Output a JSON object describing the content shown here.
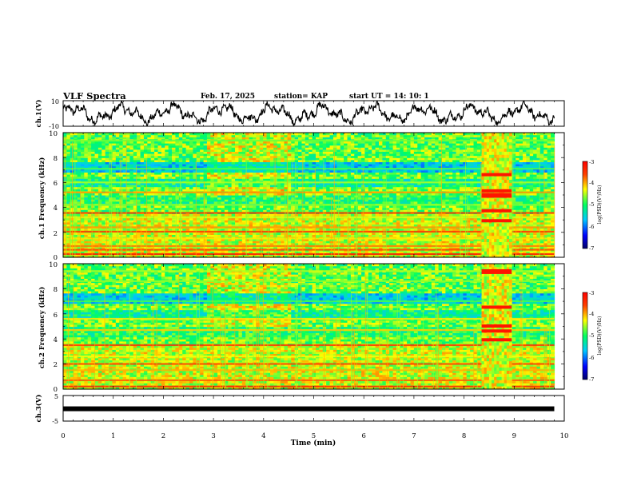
{
  "header": {
    "title": "VLF Spectra",
    "date": "Feb. 17, 2025",
    "station": "station= KAP",
    "start": "start  UT =   14: 10: 1"
  },
  "chart_data": [
    {
      "type": "line",
      "name": "ch1-waveform",
      "ylabel": "ch.1(V)",
      "ylim": [
        -10,
        10
      ],
      "yticks": [
        "10",
        "-10"
      ],
      "xlim": [
        0,
        10
      ],
      "description_values": "noisy voltage trace oscillating roughly between -8 and +8 V over 0–9.8 min"
    },
    {
      "type": "heatmap",
      "name": "ch1-spectrogram",
      "ylabel": "ch.1 Frequency (kHz)",
      "ylim": [
        0,
        10
      ],
      "yticks": [
        "0",
        "2",
        "4",
        "6",
        "8",
        "10"
      ],
      "xlim": [
        0,
        9.8
      ],
      "colorbar": {
        "label": "log(PSD)(V²/Hz)",
        "range": [
          -7,
          -3
        ],
        "ticks": [
          "-3",
          "-4",
          "-5",
          "-6",
          "-7"
        ]
      },
      "bands_khz": [
        {
          "freq": 0.25,
          "level": -3.2
        },
        {
          "freq": 0.6,
          "level": -3.6
        },
        {
          "freq": 0.9,
          "level": -3.8
        },
        {
          "freq": 1.5,
          "level": -4.2
        },
        {
          "freq": 2.05,
          "level": -3.5
        },
        {
          "freq": 2.4,
          "level": -3.9
        },
        {
          "freq": 3.2,
          "level": -4.4
        },
        {
          "freq": 3.55,
          "level": -3.4
        },
        {
          "freq": 4.2,
          "level": -4.6
        },
        {
          "freq": 5.2,
          "level": -3.9
        },
        {
          "freq": 6.0,
          "level": -4.5
        },
        {
          "freq": 7.1,
          "level": -4.8
        },
        {
          "freq": 9.35,
          "level": -4.7
        }
      ],
      "burst": {
        "t_start": 8.35,
        "t_end": 8.95,
        "freqs_khz": [
          5.0,
          5.3,
          6.6,
          3.7,
          2.9
        ]
      }
    },
    {
      "type": "heatmap",
      "name": "ch2-spectrogram",
      "ylabel": "ch.2 Frequency (kHz)",
      "ylim": [
        0,
        10
      ],
      "yticks": [
        "0",
        "2",
        "4",
        "6",
        "8",
        "10"
      ],
      "xlim": [
        0,
        9.8
      ],
      "colorbar": {
        "label": "log(PSD)(V²/Hz)",
        "range": [
          -7,
          -3
        ],
        "ticks": [
          "-3",
          "-4",
          "-5",
          "-6",
          "-7"
        ]
      },
      "bands_khz": [
        {
          "freq": 0.2,
          "level": -3.3
        },
        {
          "freq": 0.7,
          "level": -3.7
        },
        {
          "freq": 1.5,
          "level": -4.0
        },
        {
          "freq": 2.0,
          "level": -3.6
        },
        {
          "freq": 2.6,
          "level": -4.3
        },
        {
          "freq": 3.5,
          "level": -3.5
        },
        {
          "freq": 4.7,
          "level": -4.1
        },
        {
          "freq": 5.6,
          "level": -4.2
        },
        {
          "freq": 7.0,
          "level": -4.8
        },
        {
          "freq": 8.6,
          "level": -4.6
        },
        {
          "freq": 9.4,
          "level": -4.5
        }
      ],
      "burst": {
        "t_start": 8.35,
        "t_end": 8.95,
        "freqs_khz": [
          9.4,
          6.5,
          5.0,
          4.6,
          3.9
        ]
      }
    },
    {
      "type": "line",
      "name": "ch3-signal",
      "ylabel": "ch.3(V)",
      "ylim": [
        -5,
        5
      ],
      "yticks": [
        "5",
        "0",
        "-5"
      ],
      "xlim": [
        0,
        10
      ],
      "constant_value": -0.2,
      "xlabel": "Time  (min)",
      "xticks": [
        "0",
        "1",
        "2",
        "3",
        "4",
        "5",
        "6",
        "7",
        "8",
        "9",
        "10"
      ]
    }
  ]
}
